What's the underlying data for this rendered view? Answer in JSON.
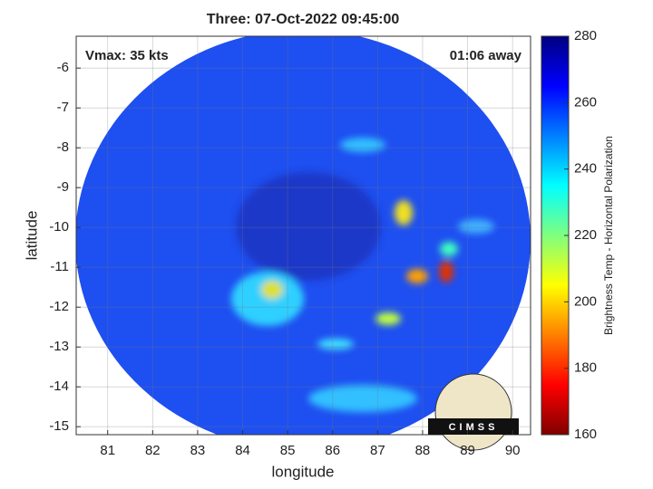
{
  "chart_data": {
    "type": "heatmap",
    "title": "Three: 07-Oct-2022 09:45:00",
    "annotations": [
      "Vmax: 35 kts",
      "01:06 away"
    ],
    "xlabel": "longitude",
    "ylabel": "latitude",
    "xlim": [
      80.3,
      90.4
    ],
    "xticks": [
      81,
      82,
      83,
      84,
      85,
      86,
      87,
      88,
      89,
      90
    ],
    "ylim": [
      -15.2,
      -5.2
    ],
    "yticks": [
      -15,
      -14,
      -13,
      -12,
      -11,
      -10,
      -9,
      -8,
      -7,
      -6
    ],
    "grid": true,
    "colorbar": {
      "label": "Brightness Temp - Horizontal Polarization",
      "lim": [
        160,
        280
      ],
      "ticks": [
        160,
        180,
        200,
        220,
        240,
        260,
        280
      ],
      "colormap": "jet"
    },
    "logo": "CIMSS"
  }
}
